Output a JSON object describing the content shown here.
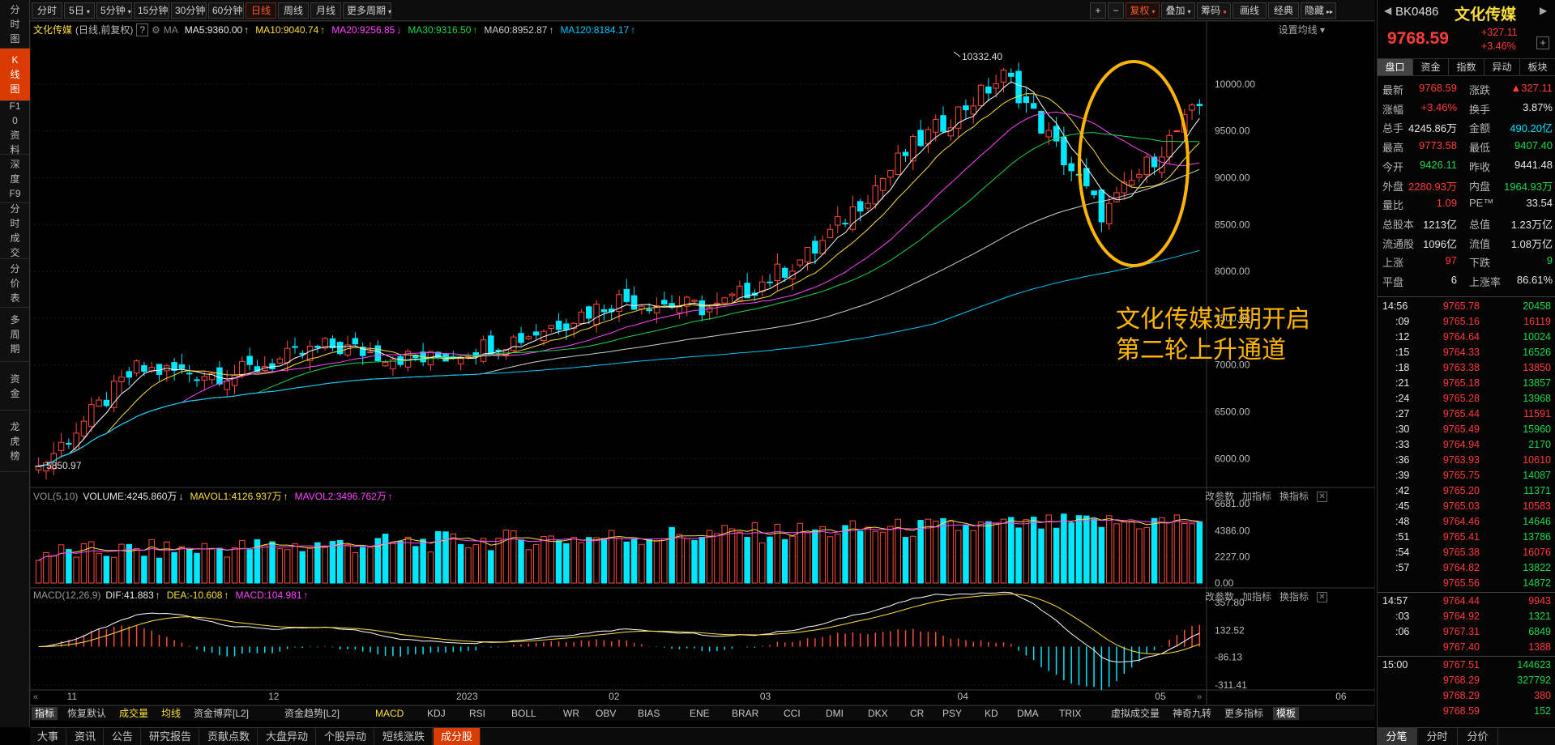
{
  "leftnav": [
    {
      "label": "分时图"
    },
    {
      "label": "K线图",
      "active": true
    },
    {
      "label": "F10资料"
    },
    {
      "label": "深度F9"
    },
    {
      "label": "分时成交"
    },
    {
      "label": "分价表"
    },
    {
      "label": "多周期"
    },
    {
      "label": "资金"
    },
    {
      "label": "龙虎榜"
    }
  ],
  "toolbar": {
    "periods": [
      "分时",
      "5日",
      "5分钟",
      "15分钟",
      "30分钟",
      "60分钟",
      "日线",
      "周线",
      "月线",
      "更多周期"
    ],
    "active_period": "日线",
    "right": [
      "复权",
      "叠加",
      "筹码",
      "画线",
      "经典",
      "隐藏"
    ]
  },
  "chart_header": {
    "name": "文化传媒",
    "mode": "(日线,前复权)",
    "help": "?",
    "ma_label": "MA",
    "ma": [
      {
        "text": "MA5:9360.00",
        "arrow": "↑",
        "color": "#e8e8e8"
      },
      {
        "text": "MA10:9040.74",
        "arrow": "↑",
        "color": "#ffdf3a"
      },
      {
        "text": "MA20:9256.85",
        "arrow": "↓",
        "color": "#ff45ff"
      },
      {
        "text": "MA30:9316.50",
        "arrow": "↑",
        "color": "#19d84a"
      },
      {
        "text": "MA60:8952.87",
        "arrow": "↑",
        "color": "#cfcfcf"
      },
      {
        "text": "MA120:8184.17",
        "arrow": "↑",
        "color": "#00c8ff"
      }
    ],
    "settings": "设置均线"
  },
  "annotation": {
    "line1": "文化传媒近期开启",
    "line2": "第二轮上升通道",
    "color": "#ffb400"
  },
  "high_label": "10332.40",
  "low_label": "5850.97",
  "price_axis": [
    "10000.00",
    "9500.00",
    "9000.00",
    "8500.00",
    "8000.00",
    "7500.00",
    "7000.00",
    "6500.00",
    "6000.00"
  ],
  "volume_header": {
    "label": "VOL(5,10)",
    "items": [
      {
        "text": "VOLUME:4245.860万",
        "arrow": "↓",
        "color": "#e8e8e8"
      },
      {
        "text": "MAVOL1:4126.937万",
        "arrow": "↑",
        "color": "#ffdf3a"
      },
      {
        "text": "MAVOL2:3496.762万",
        "arrow": "↑",
        "color": "#ff45ff"
      }
    ]
  },
  "volume_axis": [
    "6681.00",
    "4386.00",
    "2227.00",
    "0.00"
  ],
  "macd_header": {
    "label": "MACD(12,26,9)",
    "items": [
      {
        "text": "DIF:41.883",
        "arrow": "↑",
        "color": "#e8e8e8"
      },
      {
        "text": "DEA:-10.608",
        "arrow": "↑",
        "color": "#ffdf3a"
      },
      {
        "text": "MACD:104.981",
        "arrow": "↑",
        "color": "#ff45ff"
      }
    ]
  },
  "macd_axis": [
    "357.80",
    "132.52",
    "-86.13",
    "-311.41"
  ],
  "panel_buttons": [
    "改参数",
    "加指标",
    "换指标"
  ],
  "x_axis": [
    "11",
    "12",
    "2023",
    "02",
    "03",
    "04",
    "05",
    "06"
  ],
  "indicators": [
    "指标",
    "恢复默认",
    "成交量",
    "均线",
    "资金博弈[L2]",
    "资金趋势[L2]",
    "MACD",
    "KDJ",
    "RSI",
    "BOLL",
    "WR",
    "OBV",
    "BIAS",
    "ENE",
    "BRAR",
    "CCI",
    "DMI",
    "DKX",
    "CR",
    "PSY",
    "KD",
    "DMA",
    "TRIX",
    "虚拟成交量",
    "神奇九转",
    "更多指标",
    "模板"
  ],
  "bottom_tabs": [
    "大事",
    "资讯",
    "公告",
    "研究报告",
    "贡献点数",
    "大盘异动",
    "个股异动",
    "短线涨跌",
    "成分股"
  ],
  "bottom_active": "成分股",
  "quote": {
    "code": "BK0486",
    "name": "文化传媒",
    "price": "9768.59",
    "change": "+327.11",
    "pct": "+3.46%",
    "tabs": [
      "盘口",
      "资金",
      "指数",
      "异动",
      "板块"
    ],
    "rows": [
      [
        "最新",
        "9768.59",
        "red",
        "涨跌",
        "▲327.11",
        "red"
      ],
      [
        "涨幅",
        "+3.46%",
        "red",
        "换手",
        "3.87%",
        "white"
      ],
      [
        "总手",
        "4245.86万",
        "white",
        "金额",
        "490.20亿",
        "cyan"
      ],
      [
        "最高",
        "9773.58",
        "red",
        "最低",
        "9407.40",
        "green"
      ],
      [
        "今开",
        "9426.11",
        "green",
        "昨收",
        "9441.48",
        "white"
      ],
      [
        "外盘",
        "2280.93万",
        "red",
        "内盘",
        "1964.93万",
        "green"
      ],
      [
        "量比",
        "1.09",
        "red",
        "PE™",
        "33.54",
        "white"
      ],
      [
        "总股本",
        "1213亿",
        "white",
        "总值",
        "1.23万亿",
        "white"
      ],
      [
        "流通股",
        "1096亿",
        "white",
        "流值",
        "1.08万亿",
        "white"
      ],
      [
        "上涨",
        "97",
        "red",
        "下跌",
        "9",
        "green"
      ],
      [
        "平盘",
        "6",
        "white",
        "上涨率",
        "86.61%",
        "white"
      ]
    ],
    "ticks": [
      [
        "14:56",
        "9765.78",
        "20458"
      ],
      [
        ":09",
        "9765.16",
        "16119"
      ],
      [
        ":12",
        "9764.64",
        "10024"
      ],
      [
        ":15",
        "9764.33",
        "16526"
      ],
      [
        ":18",
        "9763.38",
        "13850"
      ],
      [
        ":21",
        "9765.18",
        "13857"
      ],
      [
        ":24",
        "9765.28",
        "13968"
      ],
      [
        ":27",
        "9765.44",
        "11591"
      ],
      [
        ":30",
        "9765.49",
        "15960"
      ],
      [
        ":33",
        "9764.94",
        "2170"
      ],
      [
        ":36",
        "9763.93",
        "10610"
      ],
      [
        ":39",
        "9765.75",
        "14087"
      ],
      [
        ":42",
        "9765.20",
        "11371"
      ],
      [
        ":45",
        "9765.03",
        "10583"
      ],
      [
        ":48",
        "9764.46",
        "14646"
      ],
      [
        ":51",
        "9765.41",
        "13786"
      ],
      [
        ":54",
        "9765.38",
        "16076"
      ],
      [
        ":57",
        "9764.82",
        "13822"
      ],
      [
        "",
        "9765.56",
        "14872"
      ],
      [
        "14:57",
        "9764.44",
        "9943"
      ],
      [
        ":03",
        "9764.92",
        "1321"
      ],
      [
        ":06",
        "9767.31",
        "6849"
      ],
      [
        "",
        "9767.40",
        "1388"
      ],
      [
        "15:00",
        "9767.51",
        "144623"
      ],
      [
        "",
        "9768.29",
        "327792"
      ],
      [
        "",
        "9768.29",
        "380"
      ],
      [
        "",
        "9768.59",
        "152"
      ]
    ],
    "bottom": [
      "分笔",
      "分时",
      "分价"
    ]
  },
  "chart_data": {
    "type": "candlestick",
    "title": "文化传媒",
    "ylim": [
      5700,
      10500
    ],
    "high": 10332.4,
    "low": 5850.97,
    "key_points": [
      {
        "x": "2022-10-31",
        "close": 5900
      },
      {
        "x": "2022-11-15",
        "close": 6950
      },
      {
        "x": "2022-11-30",
        "close": 6900
      },
      {
        "x": "2022-12-15",
        "close": 7200
      },
      {
        "x": "2023-01-05",
        "close": 7050
      },
      {
        "x": "2023-01-31",
        "close": 7300
      },
      {
        "x": "2023-02-15",
        "close": 7700
      },
      {
        "x": "2023-03-06",
        "close": 7600
      },
      {
        "x": "2023-03-31",
        "close": 8200
      },
      {
        "x": "2023-04-20",
        "close": 9300
      },
      {
        "x": "2023-05-08",
        "close": 10100
      },
      {
        "x": "2023-05-31",
        "close": 8600
      },
      {
        "x": "2023-06-09",
        "close": 9768.59
      }
    ]
  }
}
